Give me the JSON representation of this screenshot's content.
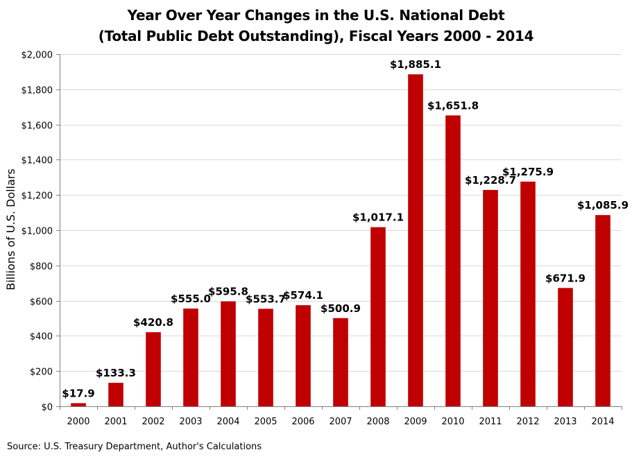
{
  "chart_data": {
    "type": "bar",
    "title_lines": [
      "Year Over Year Changes in the U.S. National Debt",
      "(Total Public Debt Outstanding), Fiscal Years 2000 - 2014"
    ],
    "ylabel": "Billions of U.S. Dollars",
    "xlabel": "",
    "categories": [
      "2000",
      "2001",
      "2002",
      "2003",
      "2004",
      "2005",
      "2006",
      "2007",
      "2008",
      "2009",
      "2010",
      "2011",
      "2012",
      "2013",
      "2014"
    ],
    "values": [
      17.9,
      133.3,
      420.8,
      555.0,
      595.8,
      553.7,
      574.1,
      500.9,
      1017.1,
      1885.1,
      1651.8,
      1228.7,
      1275.9,
      671.9,
      1085.9
    ],
    "data_labels": [
      "$17.9",
      "$133.3",
      "$420.8",
      "$555.0",
      "$595.8",
      "$553.7",
      "$574.1",
      "$500.9",
      "$1,017.1",
      "$1,885.1",
      "$1,651.8",
      "$1,228.7",
      "$1,275.9",
      "$671.9",
      "$1,085.9"
    ],
    "ylim": [
      0,
      2000
    ],
    "yticks": [
      0,
      200,
      400,
      600,
      800,
      1000,
      1200,
      1400,
      1600,
      1800,
      2000
    ],
    "ytick_labels": [
      "$0",
      "$200",
      "$400",
      "$600",
      "$800",
      "$1,000",
      "$1,200",
      "$1,400",
      "$1,600",
      "$1,800",
      "$2,000"
    ],
    "grid": true,
    "legend": "none",
    "bar_color": "#C00000",
    "grid_color": "#D9D9D9",
    "axis_color": "#808080",
    "source": "Source: U.S. Treasury Department, Author's Calculations"
  }
}
